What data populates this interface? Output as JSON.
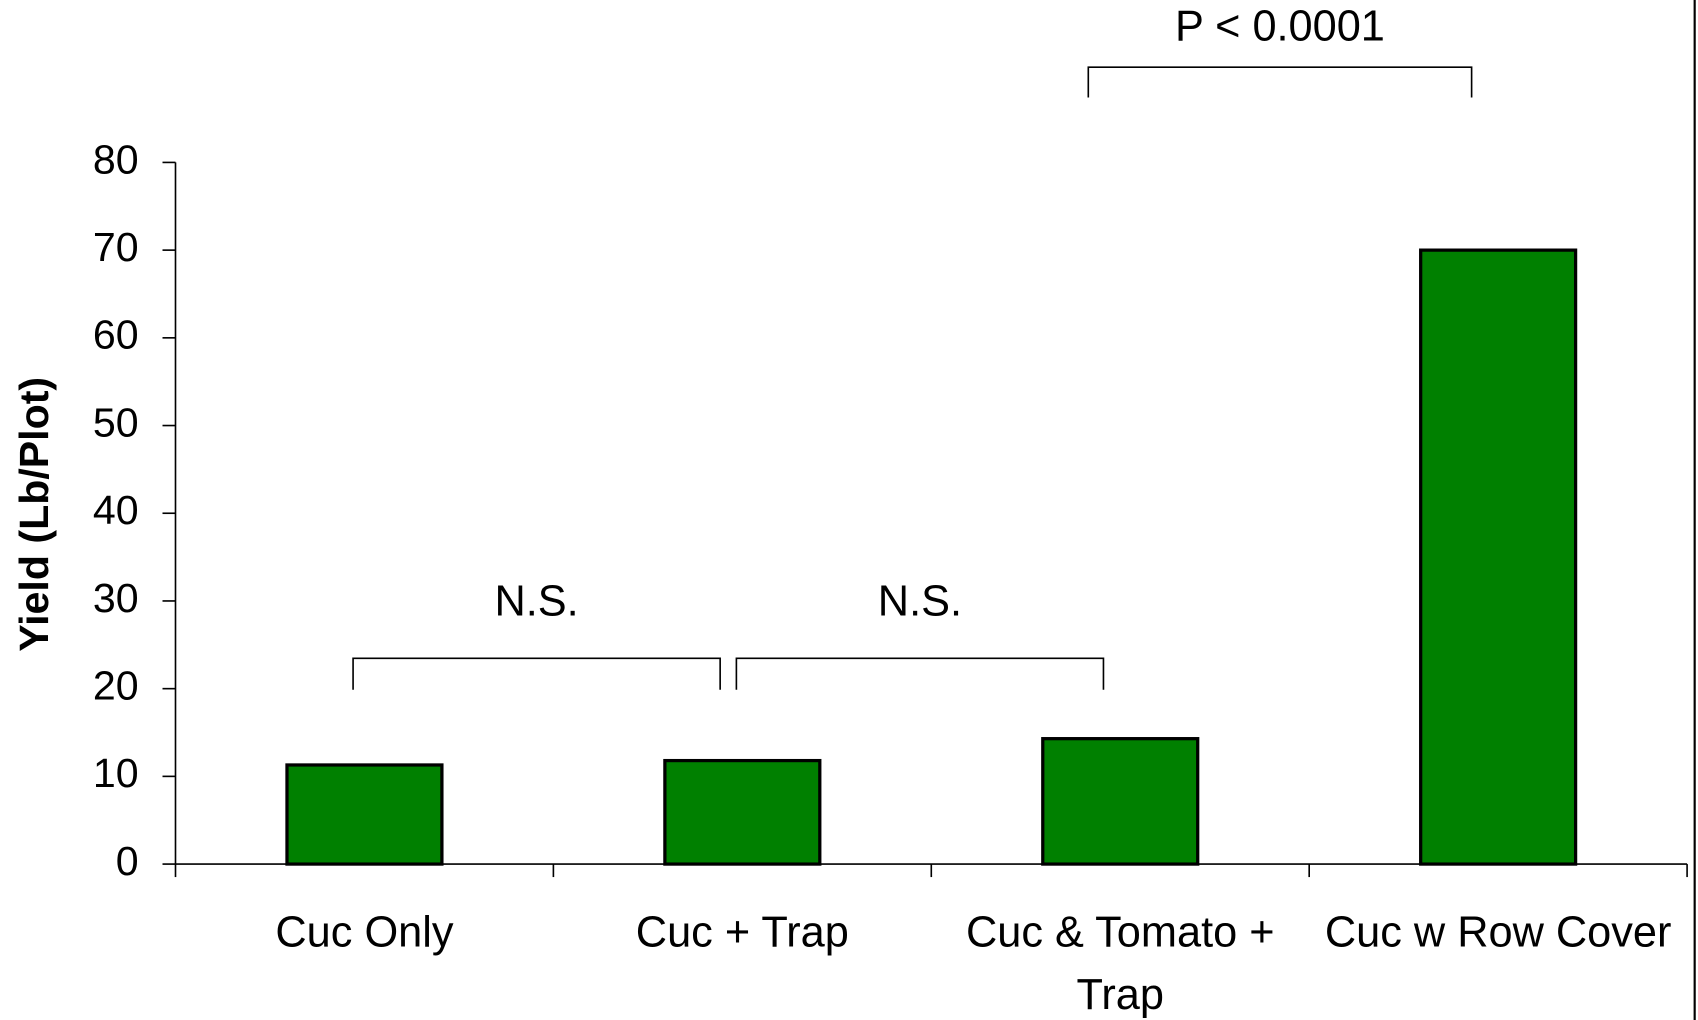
{
  "chart_data": {
    "type": "bar",
    "y_label": "Yield (Lb/Plot)",
    "categories": [
      "Cuc Only",
      "Cuc + Trap",
      "Cuc & Tomato + Trap",
      "Cuc w Row Cover"
    ],
    "values": [
      11.3,
      11.8,
      14.3,
      70
    ],
    "color": "#008000",
    "ylim": [
      0,
      80
    ],
    "yticks": [
      0,
      10,
      20,
      30,
      40,
      50,
      60,
      70,
      80
    ],
    "grid": false,
    "annotations": [
      "N.S.",
      "N.S.",
      "P < 0.0001"
    ]
  }
}
